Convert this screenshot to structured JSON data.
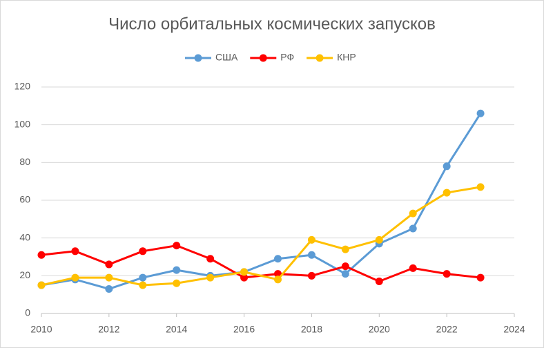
{
  "chart_data": {
    "type": "line",
    "title": "Число орбитальных космических запусков",
    "x": [
      2010,
      2011,
      2012,
      2013,
      2014,
      2015,
      2016,
      2017,
      2018,
      2019,
      2020,
      2021,
      2022,
      2023
    ],
    "series": [
      {
        "name": "США",
        "color": "#5b9bd5",
        "values": [
          15,
          18,
          13,
          19,
          23,
          20,
          22,
          29,
          31,
          21,
          37,
          45,
          78,
          106
        ]
      },
      {
        "name": "РФ",
        "color": "#ff0000",
        "values": [
          31,
          33,
          26,
          33,
          36,
          29,
          19,
          21,
          20,
          25,
          17,
          24,
          21,
          19
        ]
      },
      {
        "name": "КНР",
        "color": "#ffc000",
        "values": [
          15,
          19,
          19,
          15,
          16,
          19,
          22,
          18,
          39,
          34,
          39,
          53,
          64,
          67
        ]
      }
    ],
    "xlim": [
      2010,
      2024
    ],
    "xticks": [
      2010,
      2012,
      2014,
      2016,
      2018,
      2020,
      2022,
      2024
    ],
    "ylim": [
      0,
      120
    ],
    "yticks": [
      0,
      20,
      40,
      60,
      80,
      100,
      120
    ],
    "grid": true,
    "legend": "top"
  }
}
